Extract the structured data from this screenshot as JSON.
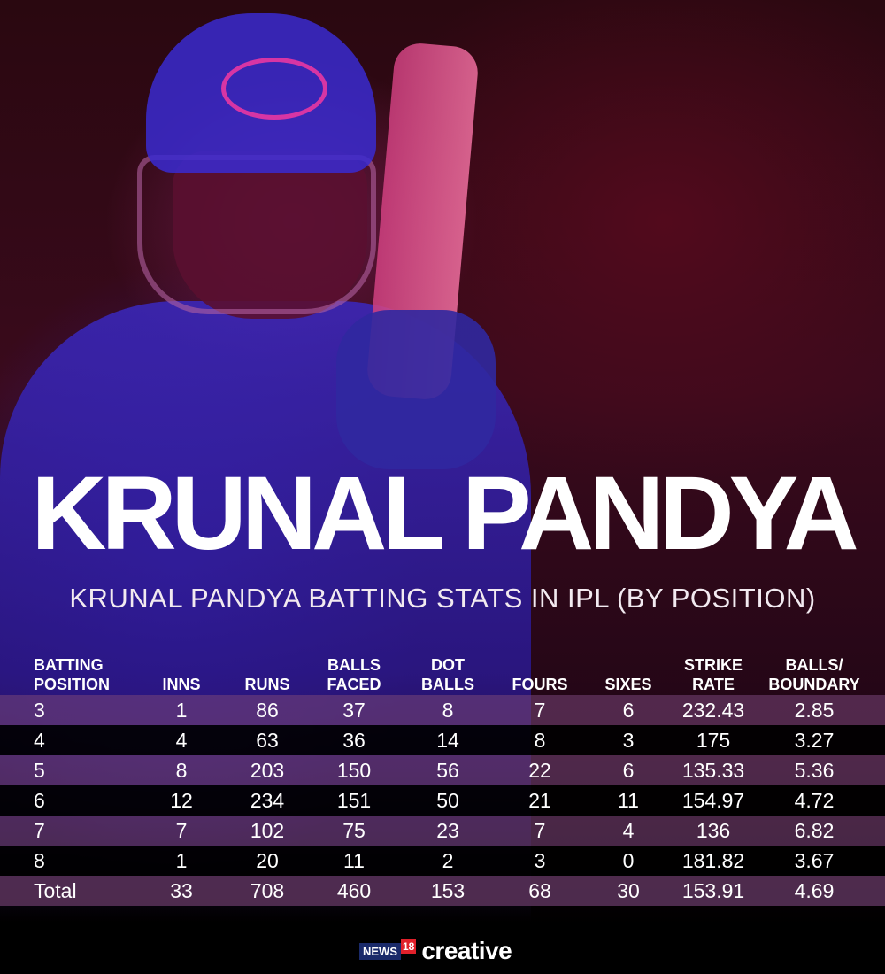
{
  "title": "KRUNAL PANDYA",
  "subtitle": "KRUNAL PANDYA BATTING STATS IN IPL (BY POSITION)",
  "chart_data": {
    "type": "table",
    "title": "KRUNAL PANDYA BATTING STATS IN IPL (BY POSITION)",
    "columns": [
      "BATTING\nPOSITION",
      "INNS",
      "RUNS",
      "BALLS\nFACED",
      "DOT\nBALLS",
      "FOURS",
      "SIXES",
      "STRIKE\nRATE",
      "BALLS/\nBOUNDARY"
    ],
    "rows": [
      [
        "3",
        "1",
        "86",
        "37",
        "8",
        "7",
        "6",
        "232.43",
        "2.85"
      ],
      [
        "4",
        "4",
        "63",
        "36",
        "14",
        "8",
        "3",
        "175",
        "3.27"
      ],
      [
        "5",
        "8",
        "203",
        "150",
        "56",
        "22",
        "6",
        "135.33",
        "5.36"
      ],
      [
        "6",
        "12",
        "234",
        "151",
        "50",
        "21",
        "11",
        "154.97",
        "4.72"
      ],
      [
        "7",
        "7",
        "102",
        "75",
        "23",
        "7",
        "4",
        "136",
        "6.82"
      ],
      [
        "8",
        "1",
        "20",
        "11",
        "2",
        "3",
        "0",
        "181.82",
        "3.67"
      ],
      [
        "Total",
        "33",
        "708",
        "460",
        "153",
        "68",
        "30",
        "153.91",
        "4.69"
      ]
    ]
  },
  "footer": {
    "news": "NEWS",
    "num": "18",
    "brand": "creative"
  },
  "colors": {
    "row_light": "#6e4a6e",
    "row_dark": "#000000",
    "background": "#2a0810"
  }
}
